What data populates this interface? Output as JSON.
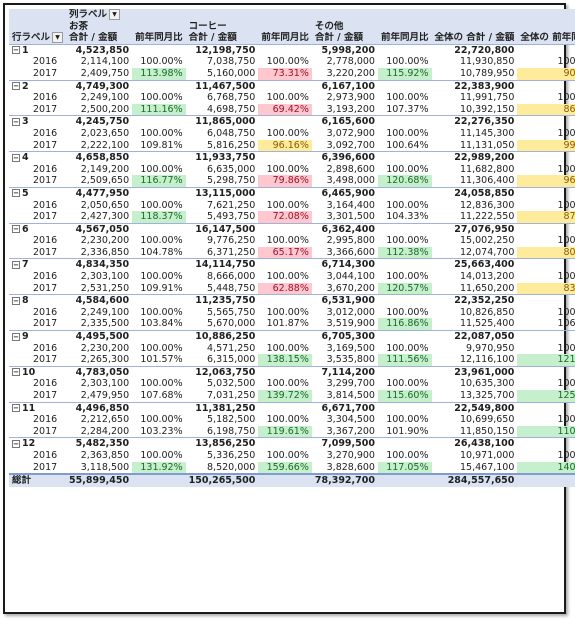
{
  "header": {
    "col_label": "列ラベル",
    "row_label": "行ラベル",
    "groups": [
      "お茶",
      "コーヒー",
      "その他"
    ],
    "sum_label": "合計 / 金額",
    "yoy_label": "前年同月比",
    "grand_sum_label": "全体の 合計 / 金額",
    "grand_yoy_label": "全体の 前年同月比"
  },
  "rows": [
    {
      "type": "month",
      "label": "1",
      "v": [
        "4,523,850",
        "",
        "12,198,750",
        "",
        "5,998,200",
        "",
        "22,720,800",
        ""
      ]
    },
    {
      "type": "year",
      "label": "2016",
      "v": [
        "2,114,100",
        "100.00%",
        "7,038,750",
        "100.00%",
        "2,778,000",
        "100.00%",
        "11,930,850",
        "100.00%"
      ],
      "c": [
        "",
        "",
        "",
        "",
        "",
        "",
        "",
        ""
      ]
    },
    {
      "type": "year",
      "label": "2017",
      "v": [
        "2,409,750",
        "113.98%",
        "5,160,000",
        "73.31%",
        "3,220,200",
        "115.92%",
        "10,789,950",
        "90.44%"
      ],
      "c": [
        "",
        "g",
        "",
        "r",
        "",
        "g",
        "",
        "y"
      ]
    },
    {
      "type": "month",
      "label": "2",
      "v": [
        "4,749,300",
        "",
        "11,467,500",
        "",
        "6,167,100",
        "",
        "22,383,900",
        ""
      ]
    },
    {
      "type": "year",
      "label": "2016",
      "v": [
        "2,249,100",
        "100.00%",
        "6,768,750",
        "100.00%",
        "2,973,900",
        "100.00%",
        "11,991,750",
        "100.00%"
      ],
      "c": [
        "",
        "",
        "",
        "",
        "",
        "",
        "",
        ""
      ]
    },
    {
      "type": "year",
      "label": "2017",
      "v": [
        "2,500,200",
        "111.16%",
        "4,698,750",
        "69.42%",
        "3,193,200",
        "107.37%",
        "10,392,150",
        "86.66%"
      ],
      "c": [
        "",
        "g",
        "",
        "r",
        "",
        "",
        "",
        "y"
      ]
    },
    {
      "type": "month",
      "label": "3",
      "v": [
        "4,245,750",
        "",
        "11,865,000",
        "",
        "6,165,600",
        "",
        "22,276,350",
        ""
      ]
    },
    {
      "type": "year",
      "label": "2016",
      "v": [
        "2,023,650",
        "100.00%",
        "6,048,750",
        "100.00%",
        "3,072,900",
        "100.00%",
        "11,145,300",
        "100.00%"
      ],
      "c": [
        "",
        "",
        "",
        "",
        "",
        "",
        "",
        ""
      ]
    },
    {
      "type": "year",
      "label": "2017",
      "v": [
        "2,222,100",
        "109.81%",
        "5,816,250",
        "96.16%",
        "3,092,700",
        "100.64%",
        "11,131,050",
        "99.87%"
      ],
      "c": [
        "",
        "",
        "",
        "y",
        "",
        "",
        "",
        "y"
      ]
    },
    {
      "type": "month",
      "label": "4",
      "v": [
        "4,658,850",
        "",
        "11,933,750",
        "",
        "6,396,600",
        "",
        "22,989,200",
        ""
      ]
    },
    {
      "type": "year",
      "label": "2016",
      "v": [
        "2,149,200",
        "100.00%",
        "6,635,000",
        "100.00%",
        "2,898,600",
        "100.00%",
        "11,682,800",
        "100.00%"
      ],
      "c": [
        "",
        "",
        "",
        "",
        "",
        "",
        "",
        ""
      ]
    },
    {
      "type": "year",
      "label": "2017",
      "v": [
        "2,509,650",
        "116.77%",
        "5,298,750",
        "79.86%",
        "3,498,000",
        "120.68%",
        "11,306,400",
        "96.78%"
      ],
      "c": [
        "",
        "g",
        "",
        "r",
        "",
        "g",
        "",
        "y"
      ]
    },
    {
      "type": "month",
      "label": "5",
      "v": [
        "4,477,950",
        "",
        "13,115,000",
        "",
        "6,465,900",
        "",
        "24,058,850",
        ""
      ]
    },
    {
      "type": "year",
      "label": "2016",
      "v": [
        "2,050,650",
        "100.00%",
        "7,621,250",
        "100.00%",
        "3,164,400",
        "100.00%",
        "12,836,300",
        "100.00%"
      ],
      "c": [
        "",
        "",
        "",
        "",
        "",
        "",
        "",
        ""
      ]
    },
    {
      "type": "year",
      "label": "2017",
      "v": [
        "2,427,300",
        "118.37%",
        "5,493,750",
        "72.08%",
        "3,301,500",
        "104.33%",
        "11,222,550",
        "87.43%"
      ],
      "c": [
        "",
        "g",
        "",
        "r",
        "",
        "",
        "",
        "y"
      ]
    },
    {
      "type": "month",
      "label": "6",
      "v": [
        "4,567,050",
        "",
        "16,147,500",
        "",
        "6,362,400",
        "",
        "27,076,950",
        ""
      ]
    },
    {
      "type": "year",
      "label": "2016",
      "v": [
        "2,230,200",
        "100.00%",
        "9,776,250",
        "100.00%",
        "2,995,800",
        "100.00%",
        "15,002,250",
        "100.00%"
      ],
      "c": [
        "",
        "",
        "",
        "",
        "",
        "",
        "",
        ""
      ]
    },
    {
      "type": "year",
      "label": "2017",
      "v": [
        "2,336,850",
        "104.78%",
        "6,371,250",
        "65.17%",
        "3,366,600",
        "112.38%",
        "12,074,700",
        "80.49%"
      ],
      "c": [
        "",
        "",
        "",
        "r",
        "",
        "g",
        "",
        "y"
      ]
    },
    {
      "type": "month",
      "label": "7",
      "v": [
        "4,834,350",
        "",
        "14,114,750",
        "",
        "6,714,300",
        "",
        "25,663,400",
        ""
      ]
    },
    {
      "type": "year",
      "label": "2016",
      "v": [
        "2,303,100",
        "100.00%",
        "8,666,000",
        "100.00%",
        "3,044,100",
        "100.00%",
        "14,013,200",
        "100.00%"
      ],
      "c": [
        "",
        "",
        "",
        "",
        "",
        "",
        "",
        ""
      ]
    },
    {
      "type": "year",
      "label": "2017",
      "v": [
        "2,531,250",
        "109.91%",
        "5,448,750",
        "62.88%",
        "3,670,200",
        "120.57%",
        "11,650,200",
        "83.14%"
      ],
      "c": [
        "",
        "",
        "",
        "r",
        "",
        "g",
        "",
        "y"
      ]
    },
    {
      "type": "month",
      "label": "8",
      "v": [
        "4,584,600",
        "",
        "11,235,750",
        "",
        "6,531,900",
        "",
        "22,352,250",
        ""
      ]
    },
    {
      "type": "year",
      "label": "2016",
      "v": [
        "2,249,100",
        "100.00%",
        "5,565,750",
        "100.00%",
        "3,012,000",
        "100.00%",
        "10,826,850",
        "100.00%"
      ],
      "c": [
        "",
        "",
        "",
        "",
        "",
        "",
        "",
        ""
      ]
    },
    {
      "type": "year",
      "label": "2017",
      "v": [
        "2,335,500",
        "103.84%",
        "5,670,000",
        "101.87%",
        "3,519,900",
        "116.86%",
        "11,525,400",
        "106.45%"
      ],
      "c": [
        "",
        "",
        "",
        "",
        "",
        "g",
        "",
        ""
      ]
    },
    {
      "type": "month",
      "label": "9",
      "v": [
        "4,495,500",
        "",
        "10,886,250",
        "",
        "6,705,300",
        "",
        "22,087,050",
        ""
      ]
    },
    {
      "type": "year",
      "label": "2016",
      "v": [
        "2,230,200",
        "100.00%",
        "4,571,250",
        "100.00%",
        "3,169,500",
        "100.00%",
        "9,970,950",
        "100.00%"
      ],
      "c": [
        "",
        "",
        "",
        "",
        "",
        "",
        "",
        ""
      ]
    },
    {
      "type": "year",
      "label": "2017",
      "v": [
        "2,265,300",
        "101.57%",
        "6,315,000",
        "138.15%",
        "3,535,800",
        "111.56%",
        "12,116,100",
        "121.51%"
      ],
      "c": [
        "",
        "",
        "",
        "g",
        "",
        "g",
        "",
        "g"
      ]
    },
    {
      "type": "month",
      "label": "10",
      "v": [
        "4,783,050",
        "",
        "12,063,750",
        "",
        "7,114,200",
        "",
        "23,961,000",
        ""
      ]
    },
    {
      "type": "year",
      "label": "2016",
      "v": [
        "2,303,100",
        "100.00%",
        "5,032,500",
        "100.00%",
        "3,299,700",
        "100.00%",
        "10,635,300",
        "100.00%"
      ],
      "c": [
        "",
        "",
        "",
        "",
        "",
        "",
        "",
        ""
      ]
    },
    {
      "type": "year",
      "label": "2017",
      "v": [
        "2,479,950",
        "107.68%",
        "7,031,250",
        "139.72%",
        "3,814,500",
        "115.60%",
        "13,325,700",
        "125.30%"
      ],
      "c": [
        "",
        "",
        "",
        "g",
        "",
        "g",
        "",
        "g"
      ]
    },
    {
      "type": "month",
      "label": "11",
      "v": [
        "4,496,850",
        "",
        "11,381,250",
        "",
        "6,671,700",
        "",
        "22,549,800",
        ""
      ]
    },
    {
      "type": "year",
      "label": "2016",
      "v": [
        "2,212,650",
        "100.00%",
        "5,182,500",
        "100.00%",
        "3,304,500",
        "100.00%",
        "10,699,650",
        "100.00%"
      ],
      "c": [
        "",
        "",
        "",
        "",
        "",
        "",
        "",
        ""
      ]
    },
    {
      "type": "year",
      "label": "2017",
      "v": [
        "2,284,200",
        "103.23%",
        "6,198,750",
        "119.61%",
        "3,367,200",
        "101.90%",
        "11,850,150",
        "110.75%"
      ],
      "c": [
        "",
        "",
        "",
        "g",
        "",
        "",
        "",
        "g"
      ]
    },
    {
      "type": "month",
      "label": "12",
      "v": [
        "5,482,350",
        "",
        "13,856,250",
        "",
        "7,099,500",
        "",
        "26,438,100",
        ""
      ]
    },
    {
      "type": "year",
      "label": "2016",
      "v": [
        "2,363,850",
        "100.00%",
        "5,336,250",
        "100.00%",
        "3,270,900",
        "100.00%",
        "10,971,000",
        "100.00%"
      ],
      "c": [
        "",
        "",
        "",
        "",
        "",
        "",
        "",
        ""
      ]
    },
    {
      "type": "year",
      "label": "2017",
      "v": [
        "3,118,500",
        "131.92%",
        "8,520,000",
        "159.66%",
        "3,828,600",
        "117.05%",
        "15,467,100",
        "140.98%"
      ],
      "c": [
        "",
        "g",
        "",
        "g",
        "",
        "g",
        "",
        "g"
      ]
    }
  ],
  "total": {
    "label": "総計",
    "v": [
      "55,899,450",
      "",
      "150,265,500",
      "",
      "78,392,700",
      "",
      "284,557,650",
      ""
    ]
  }
}
